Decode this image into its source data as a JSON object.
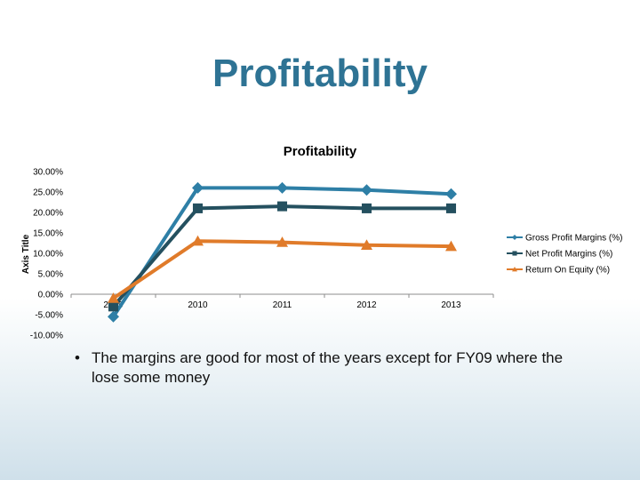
{
  "slide": {
    "title": "Profitability",
    "bullets": [
      "The margins are good for most of the years except for FY09 where the lose some money"
    ]
  },
  "chart_data": {
    "type": "line",
    "title": "Profitability",
    "ylabel": "Axis Title",
    "xlabel": "",
    "categories": [
      "2009",
      "2010",
      "2011",
      "2012",
      "2013"
    ],
    "ylim": [
      -0.1,
      0.3
    ],
    "ytick_values": [
      -0.1,
      -0.05,
      0.0,
      0.05,
      0.1,
      0.15,
      0.2,
      0.25,
      0.3
    ],
    "ytick_labels": [
      "-10.00%",
      "-5.00%",
      "0.00%",
      "5.00%",
      "10.00%",
      "15.00%",
      "20.00%",
      "25.00%",
      "30.00%"
    ],
    "grid": false,
    "legend_position": "right",
    "series": [
      {
        "name": "Gross Profit Margins (%)",
        "values": [
          -0.055,
          0.26,
          0.26,
          0.255,
          0.245
        ],
        "color": "#2e7fa6",
        "marker": "diamond"
      },
      {
        "name": "Net Profit Margins (%)",
        "values": [
          -0.03,
          0.21,
          0.215,
          0.21,
          0.21
        ],
        "color": "#24505f",
        "marker": "square"
      },
      {
        "name": "Return On Equity (%)",
        "values": [
          -0.01,
          0.13,
          0.127,
          0.12,
          0.117
        ],
        "color": "#e07b2a",
        "marker": "triangle"
      }
    ]
  }
}
